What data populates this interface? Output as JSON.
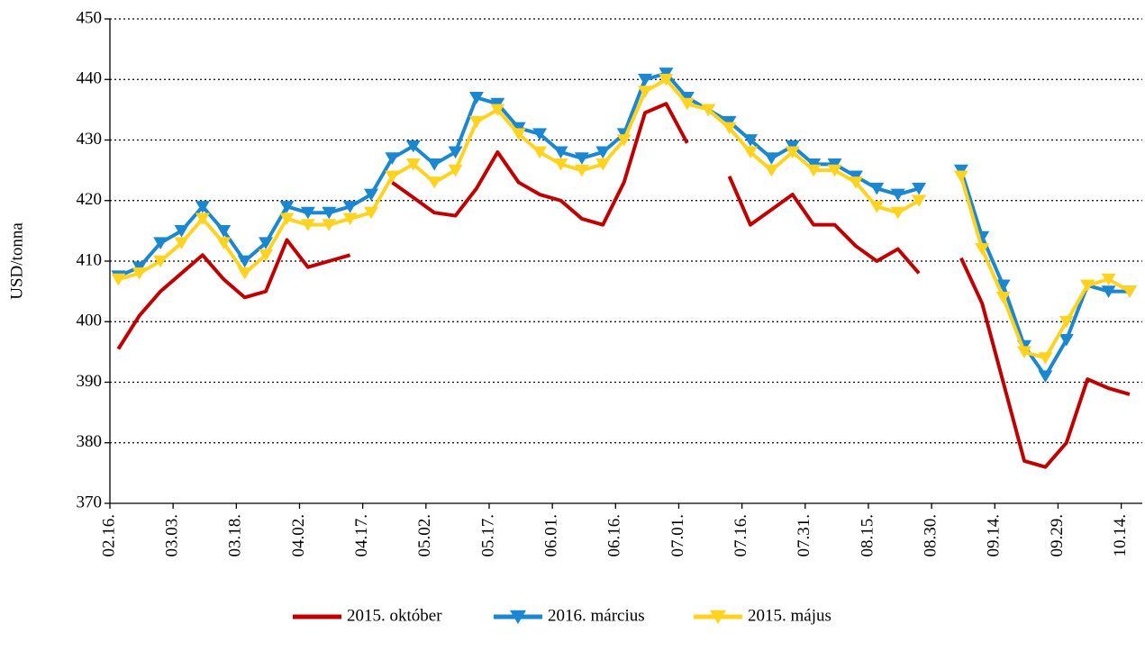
{
  "chart_data": {
    "type": "line",
    "ylabel": "USD/tonna",
    "x": [
      "02.18.",
      "02.23.",
      "02.28.",
      "03.05.",
      "03.10.",
      "03.15.",
      "03.20.",
      "03.25.",
      "03.30.",
      "04.04.",
      "04.09.",
      "04.14.",
      "04.19.",
      "04.24.",
      "04.29.",
      "05.04.",
      "05.09.",
      "05.14.",
      "05.19.",
      "05.24.",
      "05.29.",
      "06.03.",
      "06.08.",
      "06.13.",
      "06.18.",
      "06.23.",
      "06.28.",
      "07.03.",
      "07.08.",
      "07.13.",
      "07.18.",
      "07.23.",
      "07.28.",
      "08.02.",
      "08.07.",
      "08.12.",
      "08.17.",
      "08.22.",
      "08.27.",
      "09.01.",
      "09.06.",
      "09.11.",
      "09.16.",
      "09.21.",
      "09.26.",
      "10.01.",
      "10.06.",
      "10.11.",
      "10.16."
    ],
    "series": [
      {
        "name": "2015. október",
        "color": "#c00000",
        "marker": false,
        "values": [
          395.5,
          401,
          405,
          408,
          411,
          407,
          404,
          405,
          413.5,
          409,
          410,
          411,
          null,
          423,
          420.5,
          418,
          417.5,
          422,
          428,
          423,
          421,
          420,
          417,
          416,
          423,
          434.5,
          436,
          429.5,
          null,
          424,
          416,
          418.5,
          421,
          416,
          416,
          412.5,
          410,
          412,
          408,
          null,
          410.5,
          403,
          390,
          377,
          376,
          380,
          390.5,
          389,
          388
        ]
      },
      {
        "name": "2016. március",
        "color": "#1a87d0",
        "marker": true,
        "values": [
          407.5,
          409,
          413,
          415,
          419,
          415,
          410,
          413,
          419,
          418,
          418,
          419,
          421,
          427,
          429,
          426,
          428,
          437,
          436,
          432,
          431,
          428,
          427,
          428,
          431,
          440,
          441,
          437,
          435,
          433,
          430,
          427,
          429,
          426,
          426,
          424,
          422,
          421,
          422,
          null,
          425,
          414,
          406,
          396,
          391,
          397,
          406,
          405,
          405
        ]
      },
      {
        "name": "2015. május",
        "color": "#ffd320",
        "marker": true,
        "values": [
          407,
          408,
          410,
          413,
          417,
          413,
          408,
          411,
          417,
          416,
          416,
          417,
          418,
          424,
          426,
          423,
          425,
          433,
          435,
          431,
          428,
          426,
          425,
          426,
          430,
          438,
          440,
          436,
          435,
          432,
          428,
          425,
          428,
          425,
          425,
          423,
          419,
          418,
          420,
          null,
          424,
          412,
          404,
          395,
          394,
          400,
          406,
          407,
          405
        ]
      }
    ],
    "xlim": [
      "02.16.",
      "10.19."
    ],
    "xticks": [
      "02.16.",
      "03.03.",
      "03.18.",
      "04.02.",
      "04.17.",
      "05.02.",
      "05.17.",
      "06.01.",
      "06.16.",
      "07.01.",
      "07.16.",
      "07.31.",
      "08.15.",
      "08.30.",
      "09.14.",
      "09.29.",
      "10.14."
    ],
    "ylim": [
      370,
      450
    ],
    "yticks": [
      370,
      380,
      390,
      400,
      410,
      420,
      430,
      440,
      450
    ],
    "grid": true,
    "legend": "bottom"
  }
}
